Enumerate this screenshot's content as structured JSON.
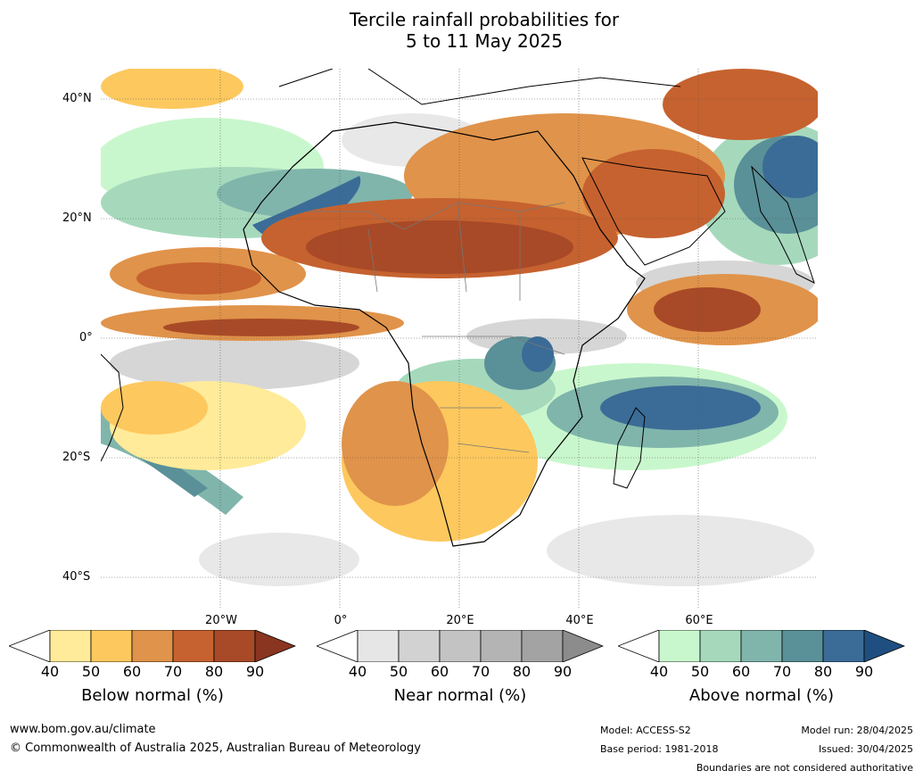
{
  "title": {
    "line1": "Tercile rainfall probabilities for",
    "line2": "5 to 11 May 2025"
  },
  "lat_labels": [
    "40°N",
    "20°N",
    "0°",
    "20°S",
    "40°S"
  ],
  "lon_labels": [
    "20°W",
    "0°",
    "20°E",
    "40°E",
    "60°E"
  ],
  "colorbars": [
    {
      "title": "Below normal (%)",
      "ticks": [
        "40",
        "50",
        "60",
        "70",
        "80",
        "90"
      ],
      "colors": [
        "#ffffff",
        "#ffeb99",
        "#fdc85e",
        "#e0934a",
        "#c6622f",
        "#a84a27",
        "#8a3520"
      ]
    },
    {
      "title": "Near normal (%)",
      "ticks": [
        "40",
        "50",
        "60",
        "70",
        "80",
        "90"
      ],
      "colors": [
        "#ffffff",
        "#e6e6e6",
        "#d2d2d2",
        "#c3c3c3",
        "#b4b4b4",
        "#a3a3a3",
        "#8c8c8c"
      ]
    },
    {
      "title": "Above normal (%)",
      "ticks": [
        "40",
        "50",
        "60",
        "70",
        "80",
        "90"
      ],
      "colors": [
        "#ffffff",
        "#c9f7cd",
        "#a6d9bc",
        "#80b5ac",
        "#5a9098",
        "#3b6c97",
        "#1f4f80"
      ]
    }
  ],
  "footer": {
    "website": "www.bom.gov.au/climate",
    "copyright": "© Commonwealth of Australia 2025, Australian Bureau of Meteorology",
    "model": "Model: ACCESS-S2",
    "base_period": "Base period: 1981-2018",
    "model_run": "Model run: 28/04/2025",
    "issued": "Issued: 30/04/2025",
    "disclaimer": "Boundaries are not considered authoritative"
  }
}
